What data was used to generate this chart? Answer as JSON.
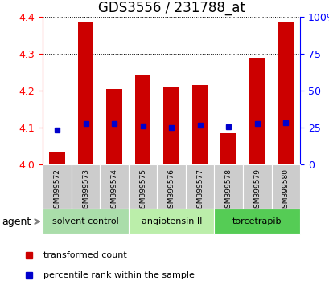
{
  "title": "GDS3556 / 231788_at",
  "samples": [
    "GSM399572",
    "GSM399573",
    "GSM399574",
    "GSM399575",
    "GSM399576",
    "GSM399577",
    "GSM399578",
    "GSM399579",
    "GSM399580"
  ],
  "red_values": [
    4.035,
    4.385,
    4.205,
    4.245,
    4.21,
    4.215,
    4.085,
    4.29,
    4.385
  ],
  "blue_values": [
    4.095,
    4.112,
    4.112,
    4.106,
    4.1,
    4.108,
    4.102,
    4.112,
    4.113
  ],
  "red_base": 4.0,
  "ylim": [
    4.0,
    4.4
  ],
  "yticks_left": [
    4.0,
    4.1,
    4.2,
    4.3,
    4.4
  ],
  "yticks_right": [
    0,
    25,
    50,
    75,
    100
  ],
  "right_ylim": [
    0,
    100
  ],
  "groups": [
    {
      "label": "solvent control",
      "indices": [
        0,
        1,
        2
      ],
      "color": "#aaddaa"
    },
    {
      "label": "angiotensin II",
      "indices": [
        3,
        4,
        5
      ],
      "color": "#bbeeaa"
    },
    {
      "label": "torcetrapib",
      "indices": [
        6,
        7,
        8
      ],
      "color": "#55cc55"
    }
  ],
  "bar_color": "#cc0000",
  "dot_color": "#0000cc",
  "bar_width": 0.55,
  "xlabel_agent": "agent",
  "legend_red": "transformed count",
  "legend_blue": "percentile rank within the sample",
  "sample_bg_color": "#cccccc",
  "title_fontsize": 12,
  "tick_fontsize": 9,
  "label_fontsize": 8
}
